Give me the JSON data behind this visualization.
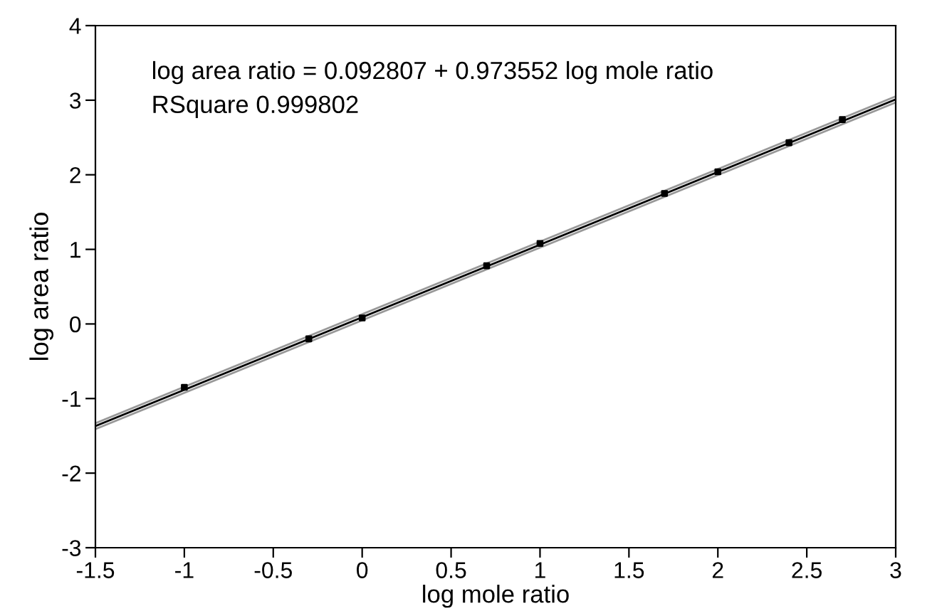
{
  "chart_data": {
    "type": "scatter",
    "xlabel": "log mole ratio",
    "ylabel": "log area ratio",
    "annotations": [
      "log area ratio = 0.092807 + 0.973552 log mole ratio",
      "RSquare 0.999802"
    ],
    "series": [
      {
        "color": "#000000",
        "marker": "square",
        "x": [
          -1,
          -0.3,
          0,
          0.7,
          1,
          1.7,
          2,
          2.4,
          2.7
        ],
        "values": [
          -0.85,
          -0.2,
          0.08,
          0.78,
          1.08,
          1.75,
          2.04,
          2.43,
          2.74
        ]
      },
      {
        "type": "line",
        "color": "#999999",
        "x": [
          -1.5,
          3
        ],
        "values": [
          -1.41,
          2.97
        ]
      },
      {
        "type": "line",
        "color": "#999999",
        "x": [
          -1.5,
          3
        ],
        "values": [
          -1.33,
          3.05
        ]
      },
      {
        "type": "line",
        "color": "#000000",
        "x": [
          -1.5,
          3
        ],
        "values": [
          -1.37,
          3.01
        ]
      }
    ],
    "xlim": [
      -1.5,
      3
    ],
    "xticks": [
      -1.5,
      -1,
      -0.5,
      0,
      0.5,
      1,
      1.5,
      2,
      2.5,
      3
    ],
    "ylim": [
      -3,
      4
    ],
    "yticks": [
      -3,
      -2,
      -1,
      0,
      1,
      2,
      3,
      4
    ],
    "grid": false,
    "legend": false
  }
}
